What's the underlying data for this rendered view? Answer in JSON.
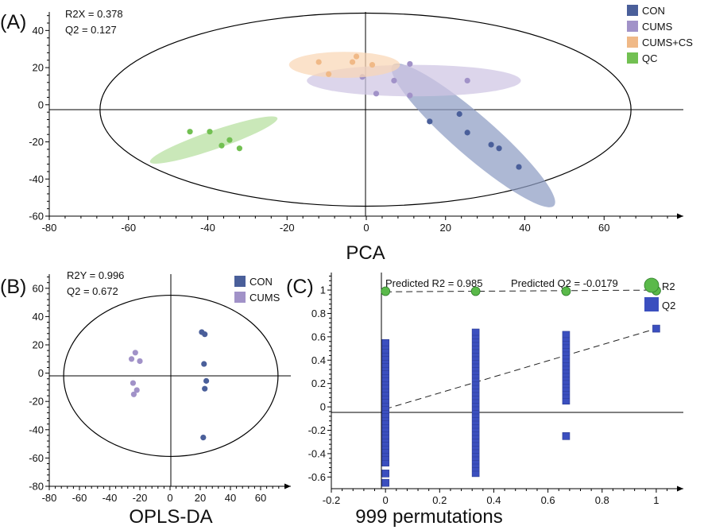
{
  "chart_data": [
    {
      "panel": "A",
      "type": "scatter",
      "panel_label": "(A)",
      "xlabel": "PCA",
      "xlim": [
        -80,
        80
      ],
      "ylim": [
        -60,
        50
      ],
      "xticks": [
        -80,
        -60,
        -40,
        -20,
        0,
        20,
        40,
        60
      ],
      "yticks": [
        -60,
        -40,
        -20,
        0,
        20,
        40
      ],
      "stats": [
        "R2X = 0.378",
        "Q2 = 0.127"
      ],
      "legend_position": "top-right",
      "hotelling_ellipse": {
        "center": [
          0,
          0
        ],
        "semi_axes": [
          67,
          52
        ]
      },
      "series": [
        {
          "name": "CON",
          "color": "#4a5f9a",
          "fill": "#8e9dc4",
          "points": [
            [
              16,
              -9
            ],
            [
              23.5,
              -5
            ],
            [
              25.5,
              -15
            ],
            [
              31.5,
              -21.5
            ],
            [
              33.5,
              -23.5
            ],
            [
              38.5,
              -33.5
            ]
          ],
          "group_ellipse": {
            "center": [
              27,
              -16.5
            ],
            "semi_axes": [
              27,
              11
            ],
            "angle_deg": 41
          }
        },
        {
          "name": "CUMS",
          "color": "#a192c8",
          "fill": "#cfc5e3",
          "points": [
            [
              -1,
              15
            ],
            [
              2.5,
              6
            ],
            [
              7,
              13
            ],
            [
              11,
              22
            ],
            [
              11,
              5
            ],
            [
              25.5,
              13
            ]
          ],
          "group_ellipse": {
            "center": [
              12,
              13
            ],
            "semi_axes": [
              27,
              8.5
            ],
            "angle_deg": 0
          }
        },
        {
          "name": "CUMS+CS",
          "color": "#f0b987",
          "fill": "#fad7b6",
          "points": [
            [
              -12,
              23
            ],
            [
              -9.5,
              16.5
            ],
            [
              -3.5,
              23
            ],
            [
              -2.5,
              26
            ],
            [
              1.5,
              21.5
            ]
          ],
          "group_ellipse": {
            "center": [
              -5.5,
              21.5
            ],
            "semi_axes": [
              14,
              7
            ],
            "angle_deg": 0
          }
        },
        {
          "name": "QC",
          "color": "#72c052",
          "fill": "#b5df9e",
          "points": [
            [
              -44.5,
              -14.5
            ],
            [
              -39.5,
              -14.5
            ],
            [
              -36.5,
              -22
            ],
            [
              -34.5,
              -19
            ],
            [
              -32,
              -23.5
            ]
          ],
          "group_ellipse": {
            "center": [
              -38.5,
              -19
            ],
            "semi_axes": [
              17,
              5
            ],
            "angle_deg": -19
          }
        }
      ]
    },
    {
      "panel": "B",
      "type": "scatter",
      "panel_label": "(B)",
      "xlabel": "OPLS-DA",
      "xlim": [
        -80,
        80
      ],
      "ylim": [
        -80,
        70
      ],
      "xticks": [
        -80,
        -60,
        -40,
        -20,
        0,
        20,
        40,
        60
      ],
      "yticks": [
        -80,
        -60,
        -40,
        -20,
        0,
        20,
        40,
        60
      ],
      "stats": [
        "R2Y = 0.996",
        "Q2 = 0.672"
      ],
      "legend_position": "top-right",
      "hotelling_ellipse": {
        "center": [
          0,
          0
        ],
        "semi_axes": [
          71,
          57
        ]
      },
      "series": [
        {
          "name": "CON",
          "color": "#4a5f9a",
          "points": [
            [
              21,
              29
            ],
            [
              23,
              27.5
            ],
            [
              22.5,
              6.5
            ],
            [
              24,
              -5.5
            ],
            [
              23,
              -11
            ],
            [
              22,
              -45.5
            ]
          ]
        },
        {
          "name": "CUMS",
          "color": "#a192c8",
          "points": [
            [
              -23,
              14.5
            ],
            [
              -25.5,
              10
            ],
            [
              -20,
              8.5
            ],
            [
              -24.5,
              -7
            ],
            [
              -22,
              -12
            ],
            [
              -24,
              -15
            ]
          ]
        }
      ]
    },
    {
      "panel": "C",
      "type": "scatter",
      "panel_label": "(C)",
      "xlabel": "999 permutations",
      "xlim": [
        -0.2,
        1.1
      ],
      "ylim": [
        -0.7,
        1.15
      ],
      "xticks": [
        -0.2,
        0,
        0.2,
        0.4,
        0.6,
        0.8,
        1
      ],
      "yticks": [
        -0.6,
        -0.4,
        -0.2,
        0,
        0.2,
        0.4,
        0.6,
        0.8,
        1
      ],
      "stats": [
        "Predicted R2 = 0.985",
        "Predicted Q2 = -0.0179"
      ],
      "legend_position": "top-right",
      "series": [
        {
          "name": "R2",
          "color": "#5ab94a",
          "marker": "circle",
          "points": [
            [
              0,
              0.99
            ],
            [
              0.333,
              0.99
            ],
            [
              0.667,
              0.99
            ],
            [
              1,
              0.995
            ]
          ],
          "regression_line": [
            [
              0,
              0.985
            ],
            [
              1,
              1.0
            ]
          ]
        },
        {
          "name": "Q2",
          "color": "#3b4fbf",
          "marker": "square",
          "permutation_ranges": [
            {
              "x": 0,
              "min": -0.48,
              "max": 0.55
            },
            {
              "x": 0.333,
              "min": -0.57,
              "max": 0.64
            },
            {
              "x": 0.667,
              "min": 0.05,
              "max": 0.62
            }
          ],
          "points": [
            [
              0,
              -0.57
            ],
            [
              0,
              -0.65
            ],
            [
              0.667,
              -0.25
            ],
            [
              1,
              0.67
            ]
          ],
          "regression_line": [
            [
              0,
              -0.0179
            ],
            [
              1,
              0.67
            ]
          ]
        }
      ]
    }
  ]
}
